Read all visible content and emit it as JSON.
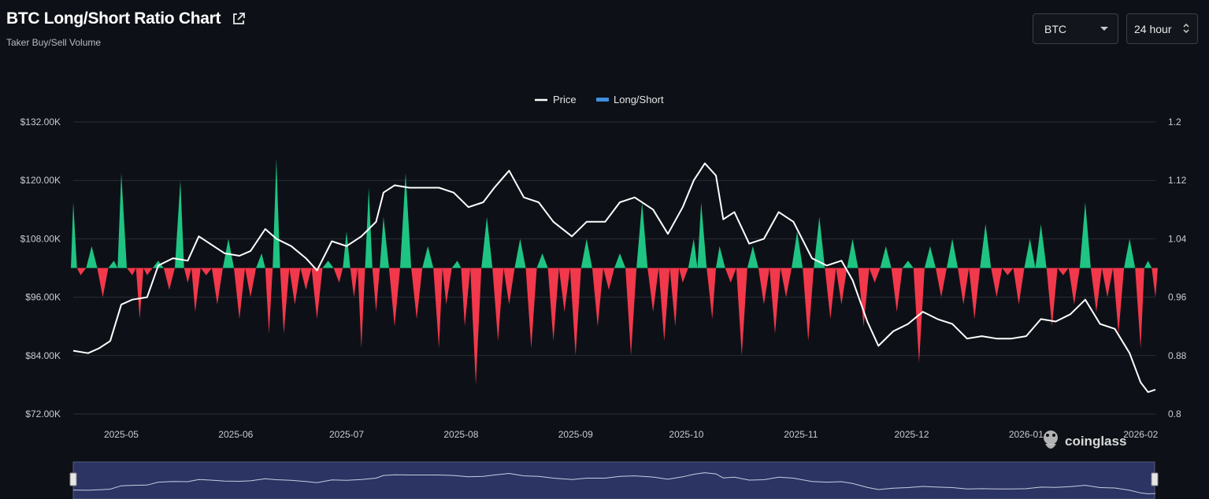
{
  "header": {
    "title": "BTC Long/Short Ratio Chart",
    "subtitle": "Taker Buy/Sell Volume",
    "coin_select": "BTC",
    "interval_select": "24 hour"
  },
  "watermark": "coinglass",
  "colors": {
    "background": "#0d1117",
    "price_line": "#ffffff",
    "long_short_legend": "#3d8fe0",
    "above_baseline": "#1fc483",
    "below_baseline": "#f2384b",
    "grid": "#2a2e35",
    "navigator_fill": "#2b3463"
  },
  "chart_data": {
    "type": "line+area",
    "legend": [
      "Price",
      "Long/Short"
    ],
    "legend_position": "top-center",
    "grid": true,
    "x_ticks": [
      "2025-05",
      "2025-06",
      "2025-07",
      "2025-08",
      "2025-09",
      "2025-10",
      "2025-11",
      "2025-12",
      "2026-01",
      "2026-02"
    ],
    "x_range": [
      "2025-04-18",
      "2026-02-05"
    ],
    "y_left": {
      "label": "Price",
      "ticks": [
        "$72.00K",
        "$84.00K",
        "$96.00K",
        "$108.00K",
        "$120.00K",
        "$132.00K"
      ],
      "range": [
        72000,
        132000
      ]
    },
    "y_right": {
      "label": "Long/Short",
      "ticks": [
        "0.8",
        "0.88",
        "0.96",
        "1.04",
        "1.12",
        "1.2"
      ],
      "range": [
        0.8,
        1.2
      ],
      "baseline": 1.0
    },
    "price_series": {
      "name": "Price",
      "x": [
        "2025-04-18",
        "2025-04-22",
        "2025-04-25",
        "2025-04-28",
        "2025-05-01",
        "2025-05-04",
        "2025-05-08",
        "2025-05-11",
        "2025-05-15",
        "2025-05-19",
        "2025-05-22",
        "2025-05-26",
        "2025-05-29",
        "2025-06-02",
        "2025-06-05",
        "2025-06-09",
        "2025-06-12",
        "2025-06-16",
        "2025-06-20",
        "2025-06-23",
        "2025-06-27",
        "2025-07-01",
        "2025-07-05",
        "2025-07-09",
        "2025-07-11",
        "2025-07-14",
        "2025-07-18",
        "2025-07-22",
        "2025-07-26",
        "2025-07-30",
        "2025-08-03",
        "2025-08-07",
        "2025-08-10",
        "2025-08-14",
        "2025-08-18",
        "2025-08-22",
        "2025-08-26",
        "2025-08-31",
        "2025-09-04",
        "2025-09-09",
        "2025-09-13",
        "2025-09-17",
        "2025-09-22",
        "2025-09-26",
        "2025-09-30",
        "2025-10-03",
        "2025-10-06",
        "2025-10-09",
        "2025-10-11",
        "2025-10-14",
        "2025-10-18",
        "2025-10-22",
        "2025-10-26",
        "2025-10-30",
        "2025-11-04",
        "2025-11-08",
        "2025-11-12",
        "2025-11-15",
        "2025-11-19",
        "2025-11-22",
        "2025-11-26",
        "2025-11-30",
        "2025-12-04",
        "2025-12-08",
        "2025-12-12",
        "2025-12-16",
        "2025-12-20",
        "2025-12-24",
        "2025-12-28",
        "2026-01-01",
        "2026-01-05",
        "2026-01-09",
        "2026-01-13",
        "2026-01-17",
        "2026-01-21",
        "2026-01-25",
        "2026-01-29",
        "2026-02-01",
        "2026-02-03",
        "2026-02-05"
      ],
      "values": [
        85000,
        84500,
        85500,
        87000,
        94500,
        95500,
        96000,
        102500,
        104000,
        103500,
        108500,
        106500,
        105000,
        104500,
        105500,
        110000,
        108000,
        106500,
        104000,
        101500,
        107500,
        106500,
        108500,
        111500,
        117500,
        119000,
        118500,
        118500,
        118500,
        117500,
        114500,
        115500,
        118500,
        122000,
        116500,
        115500,
        111500,
        108500,
        111500,
        111500,
        115500,
        116500,
        114000,
        109000,
        114500,
        120000,
        123500,
        121000,
        112000,
        113500,
        107000,
        108000,
        113500,
        111500,
        104000,
        102500,
        103500,
        99500,
        91000,
        86000,
        89000,
        90500,
        93000,
        91500,
        90500,
        87500,
        88000,
        87500,
        87500,
        88000,
        91500,
        91000,
        92500,
        95500,
        90500,
        89500,
        84500,
        78500,
        76500,
        77000
      ]
    },
    "long_short_series": {
      "name": "Long/Short",
      "x": [
        "2025-04-18",
        "2025-04-20",
        "2025-04-23",
        "2025-04-26",
        "2025-04-29",
        "2025-05-01",
        "2025-05-04",
        "2025-05-06",
        "2025-05-08",
        "2025-05-11",
        "2025-05-14",
        "2025-05-17",
        "2025-05-19",
        "2025-05-21",
        "2025-05-24",
        "2025-05-27",
        "2025-05-30",
        "2025-06-02",
        "2025-06-05",
        "2025-06-08",
        "2025-06-10",
        "2025-06-12",
        "2025-06-14",
        "2025-06-17",
        "2025-06-20",
        "2025-06-23",
        "2025-06-26",
        "2025-06-29",
        "2025-07-01",
        "2025-07-03",
        "2025-07-05",
        "2025-07-07",
        "2025-07-09",
        "2025-07-11",
        "2025-07-14",
        "2025-07-17",
        "2025-07-20",
        "2025-07-23",
        "2025-07-26",
        "2025-07-28",
        "2025-07-31",
        "2025-08-02",
        "2025-08-05",
        "2025-08-08",
        "2025-08-11",
        "2025-08-14",
        "2025-08-17",
        "2025-08-20",
        "2025-08-23",
        "2025-08-26",
        "2025-08-29",
        "2025-09-01",
        "2025-09-04",
        "2025-09-07",
        "2025-09-10",
        "2025-09-13",
        "2025-09-16",
        "2025-09-19",
        "2025-09-22",
        "2025-09-25",
        "2025-09-28",
        "2025-09-30",
        "2025-10-03",
        "2025-10-05",
        "2025-10-08",
        "2025-10-10",
        "2025-10-13",
        "2025-10-16",
        "2025-10-19",
        "2025-10-22",
        "2025-10-25",
        "2025-10-28",
        "2025-10-31",
        "2025-11-03",
        "2025-11-06",
        "2025-11-09",
        "2025-11-12",
        "2025-11-15",
        "2025-11-18",
        "2025-11-21",
        "2025-11-24",
        "2025-11-27",
        "2025-11-30",
        "2025-12-03",
        "2025-12-06",
        "2025-12-09",
        "2025-12-12",
        "2025-12-15",
        "2025-12-18",
        "2025-12-21",
        "2025-12-24",
        "2025-12-27",
        "2025-12-30",
        "2026-01-02",
        "2026-01-05",
        "2026-01-08",
        "2026-01-11",
        "2026-01-14",
        "2026-01-17",
        "2026-01-20",
        "2026-01-23",
        "2026-01-26",
        "2026-01-29",
        "2026-02-01",
        "2026-02-03",
        "2026-02-05"
      ],
      "values": [
        1.09,
        0.99,
        1.03,
        0.96,
        1.01,
        1.13,
        0.99,
        0.93,
        0.99,
        1.01,
        0.97,
        1.12,
        0.98,
        0.94,
        0.99,
        0.95,
        1.04,
        0.93,
        0.96,
        1.02,
        0.91,
        1.15,
        0.91,
        0.95,
        0.97,
        0.93,
        1.01,
        0.98,
        1.05,
        0.96,
        0.89,
        1.11,
        0.94,
        1.07,
        0.92,
        1.13,
        0.93,
        1.03,
        0.89,
        0.95,
        1.01,
        0.92,
        0.84,
        1.07,
        0.9,
        0.95,
        1.04,
        0.89,
        1.02,
        0.9,
        0.94,
        0.88,
        1.04,
        0.92,
        0.97,
        1.02,
        0.88,
        1.09,
        0.94,
        0.9,
        0.92,
        0.98,
        1.04,
        1.09,
        0.93,
        1.03,
        0.98,
        0.88,
        1.03,
        0.95,
        0.91,
        0.96,
        1.05,
        0.9,
        1.07,
        0.93,
        0.95,
        1.04,
        0.92,
        0.98,
        1.03,
        0.94,
        1.01,
        0.87,
        1.03,
        0.96,
        1.04,
        0.95,
        0.93,
        1.06,
        0.96,
        0.99,
        0.95,
        1.04,
        1.06,
        0.92,
        0.99,
        0.95,
        1.09,
        0.94,
        0.96,
        0.91,
        1.04,
        0.89,
        1.01,
        0.96
      ]
    }
  }
}
